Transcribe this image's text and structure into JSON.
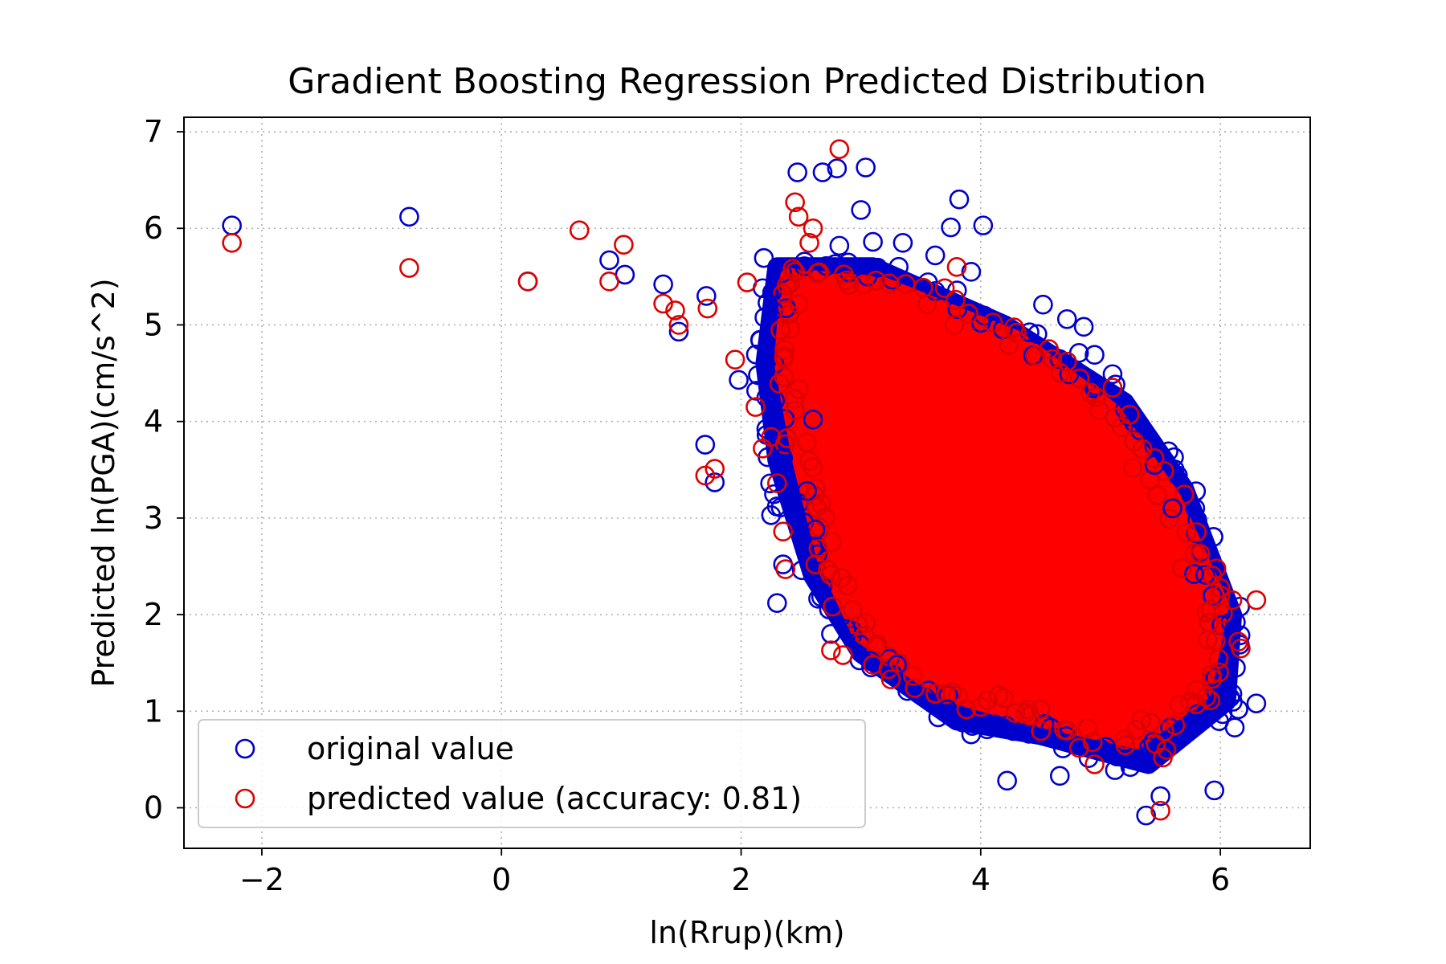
{
  "chart_data": {
    "type": "scatter",
    "title": "Gradient Boosting Regression Predicted Distribution",
    "xlabel": "ln(Rrup)(km)",
    "ylabel": "Predicted ln(PGA)(cm/s^2)",
    "xlim": [
      -2.65,
      6.75
    ],
    "ylim": [
      -0.42,
      7.15
    ],
    "xticks": [
      -2,
      0,
      2,
      4,
      6
    ],
    "yticks": [
      0,
      1,
      2,
      3,
      4,
      5,
      6,
      7
    ],
    "xtick_labels": [
      "−2",
      "0",
      "2",
      "4",
      "6"
    ],
    "ytick_labels": [
      "0",
      "1",
      "2",
      "3",
      "4",
      "5",
      "6",
      "7"
    ],
    "grid": true,
    "legend_position": "lower-left",
    "series": [
      {
        "name": "original value",
        "color": "#0000cc",
        "marker": "open-circle",
        "points": [
          [
            -2.25,
            6.03
          ],
          [
            -0.77,
            6.12
          ],
          [
            0.22,
            5.45
          ],
          [
            0.9,
            5.67
          ],
          [
            1.03,
            5.52
          ],
          [
            1.35,
            5.42
          ],
          [
            1.48,
            4.93
          ],
          [
            1.71,
            5.3
          ],
          [
            1.7,
            3.76
          ],
          [
            1.78,
            3.37
          ],
          [
            1.98,
            4.43
          ],
          [
            2.14,
            4.48
          ],
          [
            2.22,
            5.23
          ],
          [
            2.25,
            3.03
          ],
          [
            2.33,
            3.11
          ],
          [
            2.35,
            2.52
          ],
          [
            2.3,
            2.12
          ],
          [
            2.47,
            6.58
          ],
          [
            2.68,
            6.58
          ],
          [
            2.8,
            6.62
          ],
          [
            3.04,
            6.63
          ],
          [
            3.0,
            6.19
          ],
          [
            2.82,
            5.82
          ],
          [
            3.1,
            5.86
          ],
          [
            3.35,
            5.85
          ],
          [
            3.75,
            6.01
          ],
          [
            3.82,
            6.3
          ],
          [
            4.02,
            6.03
          ],
          [
            4.72,
            5.06
          ],
          [
            4.82,
            4.71
          ],
          [
            4.95,
            4.69
          ],
          [
            5.1,
            4.49
          ],
          [
            5.45,
            3.55
          ],
          [
            5.6,
            3.1
          ],
          [
            5.78,
            2.42
          ],
          [
            6.1,
            1.18
          ],
          [
            6.3,
            1.08
          ],
          [
            6.12,
            0.83
          ],
          [
            6.15,
            1.02
          ],
          [
            5.95,
            0.18
          ],
          [
            5.5,
            0.12
          ],
          [
            5.38,
            -0.08
          ],
          [
            5.12,
            0.39
          ],
          [
            4.66,
            0.33
          ],
          [
            4.22,
            0.28
          ],
          [
            3.92,
            0.76
          ],
          [
            3.72,
            1.02
          ],
          [
            3.3,
            1.48
          ],
          [
            3.08,
            1.52
          ],
          [
            2.75,
            1.8
          ],
          [
            2.62,
            2.88
          ],
          [
            2.55,
            3.28
          ],
          [
            2.6,
            4.02
          ],
          [
            2.35,
            3.62
          ],
          [
            3.62,
            5.72
          ],
          [
            3.92,
            5.55
          ],
          [
            4.52,
            5.21
          ],
          [
            4.86,
            4.98
          ]
        ]
      },
      {
        "name": "predicted value (accuracy: 0.81)",
        "color": "#dd0000",
        "marker": "open-circle",
        "points": [
          [
            -2.25,
            5.85
          ],
          [
            -0.77,
            5.59
          ],
          [
            0.22,
            5.45
          ],
          [
            0.65,
            5.98
          ],
          [
            0.9,
            5.45
          ],
          [
            1.02,
            5.83
          ],
          [
            1.35,
            5.22
          ],
          [
            1.45,
            5.15
          ],
          [
            1.48,
            5.0
          ],
          [
            1.72,
            5.17
          ],
          [
            1.7,
            3.44
          ],
          [
            1.78,
            3.51
          ],
          [
            1.95,
            4.64
          ],
          [
            2.05,
            5.44
          ],
          [
            2.12,
            4.15
          ],
          [
            2.18,
            3.72
          ],
          [
            2.25,
            3.84
          ],
          [
            2.3,
            3.36
          ],
          [
            2.35,
            2.86
          ],
          [
            2.37,
            2.47
          ],
          [
            2.45,
            6.27
          ],
          [
            2.48,
            6.12
          ],
          [
            2.6,
            6.0
          ],
          [
            2.82,
            6.82
          ],
          [
            2.57,
            5.85
          ],
          [
            2.45,
            5.55
          ],
          [
            2.62,
            2.52
          ],
          [
            2.75,
            1.63
          ],
          [
            2.85,
            1.58
          ],
          [
            3.1,
            1.48
          ],
          [
            3.25,
            1.33
          ],
          [
            3.8,
            5.6
          ],
          [
            3.62,
            1.18
          ],
          [
            3.88,
            1.02
          ],
          [
            4.5,
            1.02
          ],
          [
            4.82,
            0.62
          ],
          [
            4.95,
            0.45
          ],
          [
            5.42,
            0.88
          ],
          [
            5.55,
            0.6
          ],
          [
            5.52,
            0.52
          ],
          [
            5.5,
            -0.03
          ],
          [
            5.8,
            1.22
          ],
          [
            6.0,
            2.2
          ],
          [
            6.1,
            2.15
          ],
          [
            6.3,
            2.15
          ],
          [
            6.15,
            1.72
          ],
          [
            6.17,
            1.65
          ],
          [
            5.92,
            2.05
          ],
          [
            5.68,
            2.48
          ],
          [
            5.45,
            3.62
          ],
          [
            5.1,
            4.35
          ],
          [
            4.72,
            4.62
          ],
          [
            4.3,
            4.92
          ],
          [
            3.7,
            5.38
          ]
        ]
      }
    ]
  }
}
